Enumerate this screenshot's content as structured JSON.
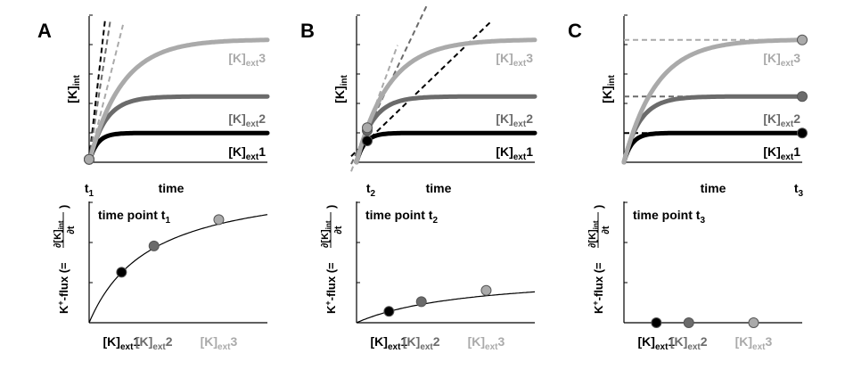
{
  "figure": {
    "panels": [
      "A",
      "B",
      "C"
    ],
    "top_ylabel": "[K]",
    "top_ylabel_sub": "int",
    "time_label": "time",
    "bottom_ylabel_prefix": "K",
    "bottom_ylabel_sup": "+",
    "bottom_ylabel_mid": "-flux (=",
    "bottom_ylabel_close": ")",
    "partial_num": "∂[K]",
    "partial_num_sub": "int",
    "partial_den": "∂t",
    "k_label": "[K]",
    "k_sub": "ext",
    "time_point_label": "time point t",
    "t_label": "t",
    "t_subs": [
      "1",
      "2",
      "3"
    ],
    "ext_levels": [
      "1",
      "2",
      "3"
    ],
    "colors": {
      "ext1": "#000000",
      "ext2": "#6b6b6b",
      "ext3": "#aaaaaa"
    }
  },
  "chart_data": [
    {
      "type": "line",
      "panel": "A",
      "title": "",
      "xlabel": "time",
      "ylabel": "[K]int",
      "xlim": [
        0,
        10
      ],
      "ylim": [
        0,
        10
      ],
      "series": [
        {
          "name": "[K]ext1",
          "plateau": 2.0,
          "rate": 2.2
        },
        {
          "name": "[K]ext2",
          "plateau": 4.5,
          "rate": 1.1
        },
        {
          "name": "[K]ext3",
          "plateau": 8.4,
          "rate": 0.55
        }
      ],
      "time_point": "t1",
      "time_point_x": 0.0,
      "tangents": "initial slopes (dashed)"
    },
    {
      "type": "line",
      "panel": "B",
      "title": "",
      "xlabel": "time",
      "ylabel": "[K]int",
      "xlim": [
        0,
        10
      ],
      "ylim": [
        0,
        10
      ],
      "series": [
        {
          "name": "[K]ext1",
          "plateau": 2.0,
          "rate": 2.2
        },
        {
          "name": "[K]ext2",
          "plateau": 4.5,
          "rate": 1.1
        },
        {
          "name": "[K]ext3",
          "plateau": 8.4,
          "rate": 0.55
        }
      ],
      "time_point": "t2",
      "time_point_x": 0.6,
      "tangents": "slopes at t2 (dashed)"
    },
    {
      "type": "line",
      "panel": "C",
      "title": "",
      "xlabel": "time",
      "ylabel": "[K]int",
      "xlim": [
        0,
        10
      ],
      "ylim": [
        0,
        10
      ],
      "series": [
        {
          "name": "[K]ext1",
          "plateau": 2.0,
          "rate": 2.2
        },
        {
          "name": "[K]ext2",
          "plateau": 4.5,
          "rate": 1.1
        },
        {
          "name": "[K]ext3",
          "plateau": 8.4,
          "rate": 0.55
        }
      ],
      "time_point": "t3",
      "time_point_x": 10.0,
      "tangents": "flat slopes at t3 (dashed)"
    },
    {
      "type": "scatter",
      "panel": "A",
      "title": "time point t1",
      "xlabel": "[K]ext",
      "ylabel": "K+-flux (= ∂[K]int/∂t)",
      "categories": [
        "[K]ext1",
        "[K]ext2",
        "[K]ext3"
      ],
      "x": [
        1,
        2,
        4
      ],
      "values": [
        1.25,
        1.9,
        2.55
      ],
      "fit_curve": "saturating",
      "ylim": [
        0,
        3
      ]
    },
    {
      "type": "scatter",
      "panel": "B",
      "title": "time point t2",
      "xlabel": "[K]ext",
      "ylabel": "K+-flux (= ∂[K]int/∂t)",
      "categories": [
        "[K]ext1",
        "[K]ext2",
        "[K]ext3"
      ],
      "x": [
        1,
        2,
        4
      ],
      "values": [
        0.28,
        0.52,
        0.8
      ],
      "fit_curve": "saturating",
      "ylim": [
        0,
        3
      ]
    },
    {
      "type": "scatter",
      "panel": "C",
      "title": "time point t3",
      "xlabel": "[K]ext",
      "ylabel": "K+-flux (= ∂[K]int/∂t)",
      "categories": [
        "[K]ext1",
        "[K]ext2",
        "[K]ext3"
      ],
      "x": [
        1,
        2,
        4
      ],
      "values": [
        0,
        0,
        0
      ],
      "fit_curve": "none",
      "ylim": [
        0,
        3
      ]
    }
  ]
}
